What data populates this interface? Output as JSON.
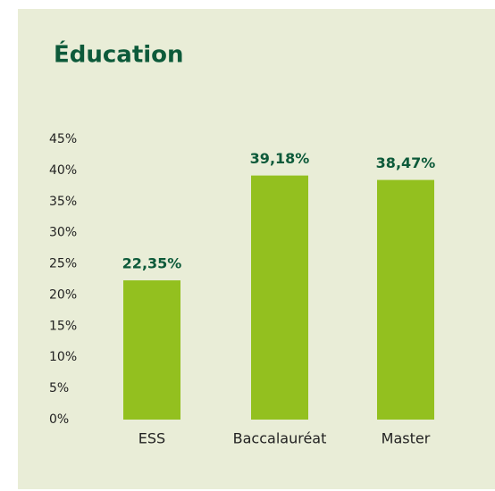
{
  "chart_data": {
    "type": "bar",
    "title": "Éducation",
    "categories": [
      "ESS",
      "Baccalauréat",
      "Master"
    ],
    "values": [
      22.35,
      39.18,
      38.47
    ],
    "value_labels": [
      "22,35%",
      "39,18%",
      "38,47%"
    ],
    "color": "#93c01f",
    "ylim": [
      0,
      45
    ],
    "yticks": [
      {
        "value": 0,
        "label": "0%"
      },
      {
        "value": 5,
        "label": "5%"
      },
      {
        "value": 10,
        "label": "10%"
      },
      {
        "value": 15,
        "label": "15%"
      },
      {
        "value": 20,
        "label": "20%"
      },
      {
        "value": 25,
        "label": "25%"
      },
      {
        "value": 30,
        "label": "30%"
      },
      {
        "value": 35,
        "label": "35%"
      },
      {
        "value": 40,
        "label": "40%"
      },
      {
        "value": 45,
        "label": "45%"
      }
    ],
    "grid": false
  }
}
